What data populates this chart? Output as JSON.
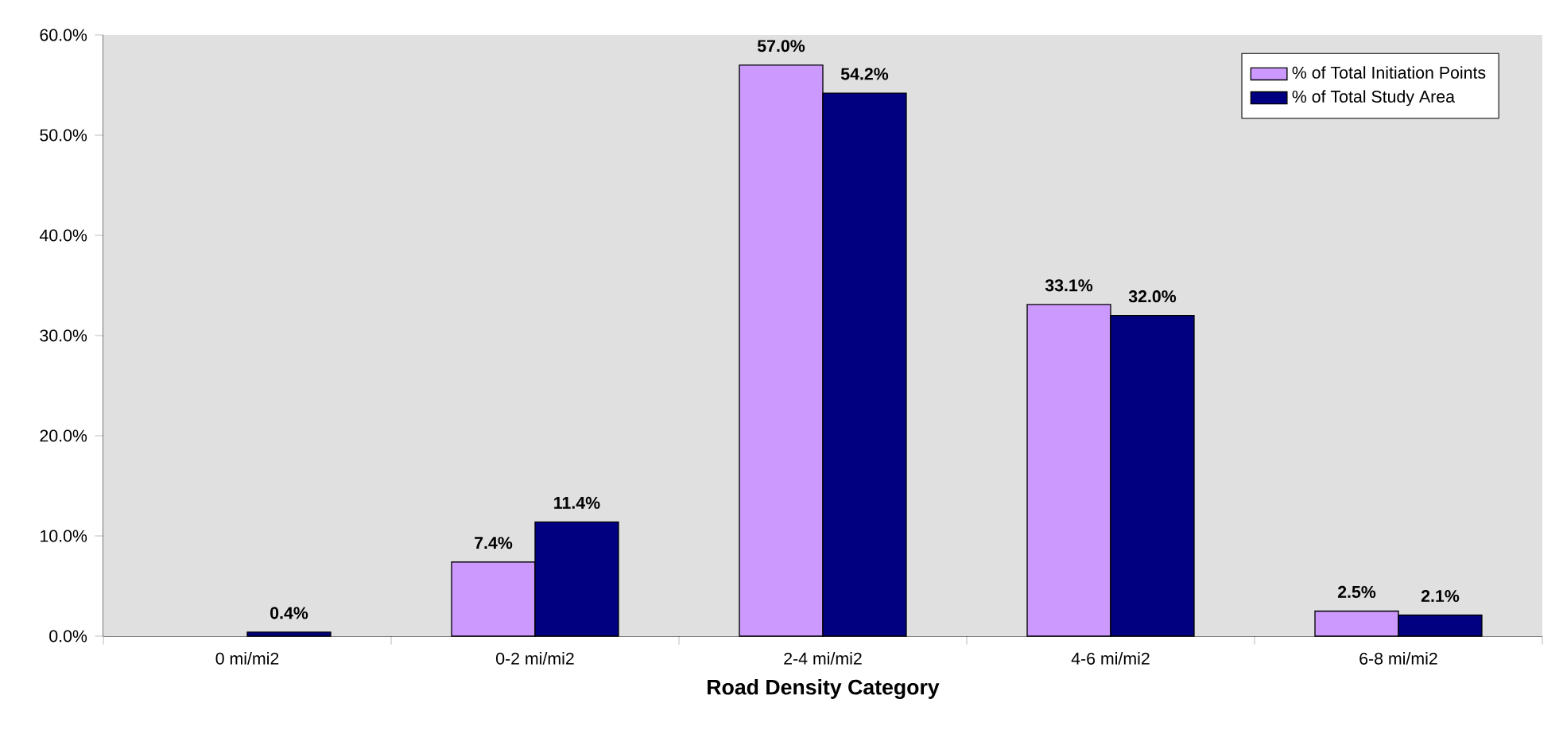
{
  "chart_data": {
    "type": "bar",
    "xlabel": "Road Density Category",
    "categories": [
      "0 mi/mi2",
      "0-2 mi/mi2",
      "2-4 mi/mi2",
      "4-6 mi/mi2",
      "6-8 mi/mi2"
    ],
    "series": [
      {
        "name": "% of Total Initiation Points",
        "color": "#cc99ff",
        "values": [
          null,
          7.4,
          57.0,
          33.1,
          2.5
        ],
        "value_labels": [
          null,
          "7.4%",
          "57.0%",
          "33.1%",
          "2.5%"
        ]
      },
      {
        "name": "% of Total Study Area",
        "color": "#000080",
        "values": [
          0.4,
          11.4,
          54.2,
          32.0,
          2.1
        ],
        "value_labels": [
          "0.4%",
          "11.4%",
          "54.2%",
          "32.0%",
          "2.1%"
        ]
      }
    ],
    "ylim": [
      0,
      60
    ],
    "yticks": [
      {
        "value": 0,
        "label": "0.0%"
      },
      {
        "value": 10,
        "label": "10.0%"
      },
      {
        "value": 20,
        "label": "20.0%"
      },
      {
        "value": 30,
        "label": "30.0%"
      },
      {
        "value": 40,
        "label": "40.0%"
      },
      {
        "value": 50,
        "label": "50.0%"
      },
      {
        "value": 60,
        "label": "60.0%"
      }
    ],
    "grid": false,
    "legend": "top right"
  }
}
